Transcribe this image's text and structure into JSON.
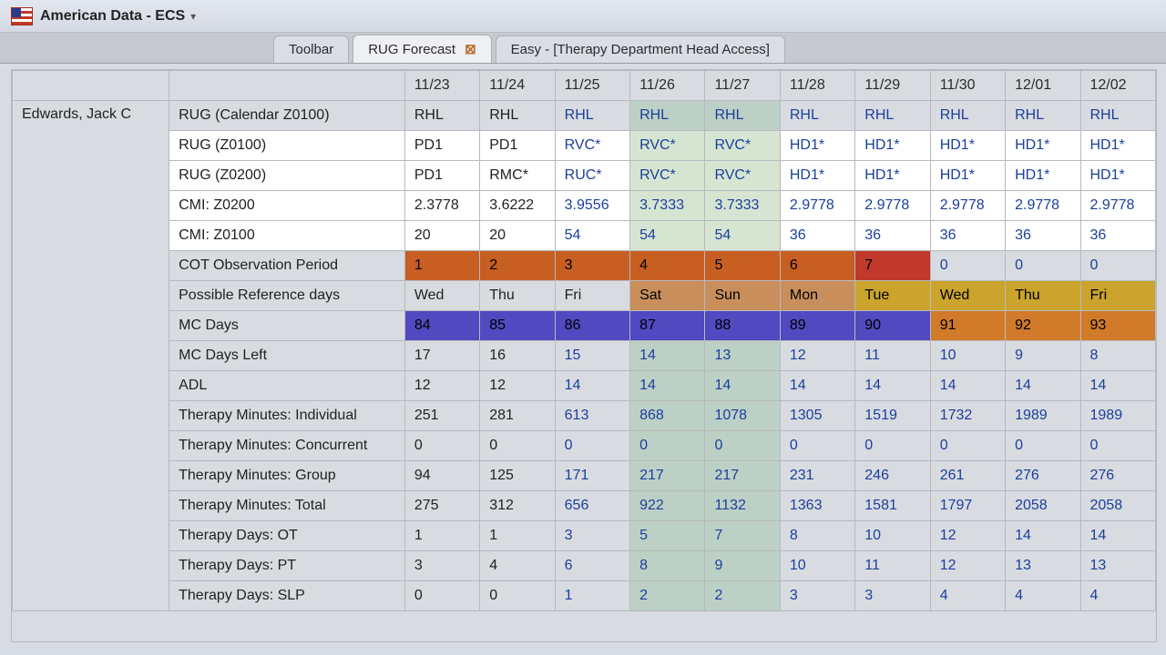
{
  "header": {
    "app_title": "American Data - ECS",
    "tabs": [
      {
        "label": "Toolbar",
        "active": false,
        "closable": false
      },
      {
        "label": "RUG Forecast",
        "active": true,
        "closable": true
      },
      {
        "label": "Easy - [Therapy Department Head Access]",
        "active": false,
        "closable": false
      }
    ]
  },
  "table": {
    "dates": [
      "11/23",
      "11/24",
      "11/25",
      "11/26",
      "11/27",
      "11/28",
      "11/29",
      "11/30",
      "12/01",
      "12/02"
    ],
    "col_text_color": [
      "black",
      "black",
      "blue",
      "blue",
      "blue",
      "blue",
      "blue",
      "blue",
      "blue",
      "blue"
    ],
    "col_bg_zone": [
      "norm",
      "norm",
      "norm",
      "green",
      "green",
      "norm",
      "norm",
      "norm",
      "norm",
      "norm"
    ],
    "patient_name": "Edwards, Jack C",
    "rows": [
      {
        "label": "RUG (Calendar Z0100)",
        "style": "grey-bg",
        "cells": [
          "RHL",
          "RHL",
          "RHL",
          "RHL",
          "RHL",
          "RHL",
          "RHL",
          "RHL",
          "RHL",
          "RHL"
        ]
      },
      {
        "label": "RUG (Z0100)",
        "style": "hilite",
        "cells": [
          "PD1",
          "PD1",
          "RVC*",
          "RVC*",
          "RVC*",
          "HD1*",
          "HD1*",
          "HD1*",
          "HD1*",
          "HD1*"
        ]
      },
      {
        "label": "RUG (Z0200)",
        "style": "hilite",
        "cells": [
          "PD1",
          "RMC*",
          "RUC*",
          "RVC*",
          "RVC*",
          "HD1*",
          "HD1*",
          "HD1*",
          "HD1*",
          "HD1*"
        ]
      },
      {
        "label": "CMI: Z0200",
        "style": "hilite",
        "cells": [
          "2.3778",
          "3.6222",
          "3.9556",
          "3.7333",
          "3.7333",
          "2.9778",
          "2.9778",
          "2.9778",
          "2.9778",
          "2.9778"
        ]
      },
      {
        "label": "CMI: Z0100",
        "style": "hilite",
        "cells": [
          "20",
          "20",
          "54",
          "54",
          "54",
          "36",
          "36",
          "36",
          "36",
          "36"
        ]
      },
      {
        "label": "COT Observation Period",
        "style": "row-cot",
        "cells": [
          "1",
          "2",
          "3",
          "4",
          "5",
          "6",
          "7",
          "0",
          "0",
          "0"
        ],
        "cell_bg": [
          "cot-orange",
          "cot-orange",
          "cot-orange",
          "cot-orange",
          "cot-orange",
          "cot-orange",
          "cot-red",
          "cot-zero",
          "cot-zero",
          "cot-zero"
        ]
      },
      {
        "label": "Possible Reference days",
        "style": "row-refdays",
        "cells": [
          "Wed",
          "Thu",
          "Fri",
          "Sat",
          "Sun",
          "Mon",
          "Tue",
          "Wed",
          "Thu",
          "Fri"
        ],
        "cell_bg": [
          "refday-wk",
          "refday-wk",
          "refday-wk",
          "refday-sat",
          "refday-sat",
          "refday-sat",
          "refday-gold",
          "refday-gold",
          "refday-gold",
          "refday-gold"
        ]
      },
      {
        "label": "MC Days",
        "style": "row-mcdays",
        "cells": [
          "84",
          "85",
          "86",
          "87",
          "88",
          "89",
          "90",
          "91",
          "92",
          "93"
        ],
        "cell_bg": [
          "mcdays-purple",
          "mcdays-purple",
          "mcdays-purple",
          "mcdays-purple",
          "mcdays-purple",
          "mcdays-purple",
          "mcdays-purple",
          "mcdays-orange",
          "mcdays-orange",
          "mcdays-orange"
        ]
      },
      {
        "label": "MC Days Left",
        "style": "grey-bg",
        "cells": [
          "17",
          "16",
          "15",
          "14",
          "13",
          "12",
          "11",
          "10",
          "9",
          "8"
        ]
      },
      {
        "label": "ADL",
        "style": "grey-bg",
        "cells": [
          "12",
          "12",
          "14",
          "14",
          "14",
          "14",
          "14",
          "14",
          "14",
          "14"
        ]
      },
      {
        "label": "Therapy Minutes: Individual",
        "style": "grey-bg",
        "cells": [
          "251",
          "281",
          "613",
          "868",
          "1078",
          "1305",
          "1519",
          "1732",
          "1989",
          "1989"
        ]
      },
      {
        "label": "Therapy Minutes: Concurrent",
        "style": "grey-bg",
        "cells": [
          "0",
          "0",
          "0",
          "0",
          "0",
          "0",
          "0",
          "0",
          "0",
          "0"
        ]
      },
      {
        "label": "Therapy Minutes: Group",
        "style": "grey-bg",
        "cells": [
          "94",
          "125",
          "171",
          "217",
          "217",
          "231",
          "246",
          "261",
          "276",
          "276"
        ]
      },
      {
        "label": "Therapy Minutes: Total",
        "style": "grey-bg",
        "cells": [
          "275",
          "312",
          "656",
          "922",
          "1132",
          "1363",
          "1581",
          "1797",
          "2058",
          "2058"
        ]
      },
      {
        "label": "Therapy Days: OT",
        "style": "grey-bg",
        "cells": [
          "1",
          "1",
          "3",
          "5",
          "7",
          "8",
          "10",
          "12",
          "14",
          "14"
        ]
      },
      {
        "label": "Therapy Days: PT",
        "style": "grey-bg",
        "cells": [
          "3",
          "4",
          "6",
          "8",
          "9",
          "10",
          "11",
          "12",
          "13",
          "13"
        ]
      },
      {
        "label": "Therapy Days: SLP",
        "style": "grey-bg",
        "cells": [
          "0",
          "0",
          "1",
          "2",
          "2",
          "3",
          "3",
          "4",
          "4",
          "4"
        ]
      }
    ]
  },
  "colors": {
    "blue_text": "#1b3f9c",
    "cot_orange": "#c75e22",
    "cot_red": "#c0392b",
    "ref_gold": "#caa42c",
    "ref_tan": "#c88f5d",
    "mc_purple": "#5049c0",
    "mc_orange": "#d07a2a",
    "green_zone": "#bdd0c6",
    "lime_zone": "#d6e5d2"
  }
}
